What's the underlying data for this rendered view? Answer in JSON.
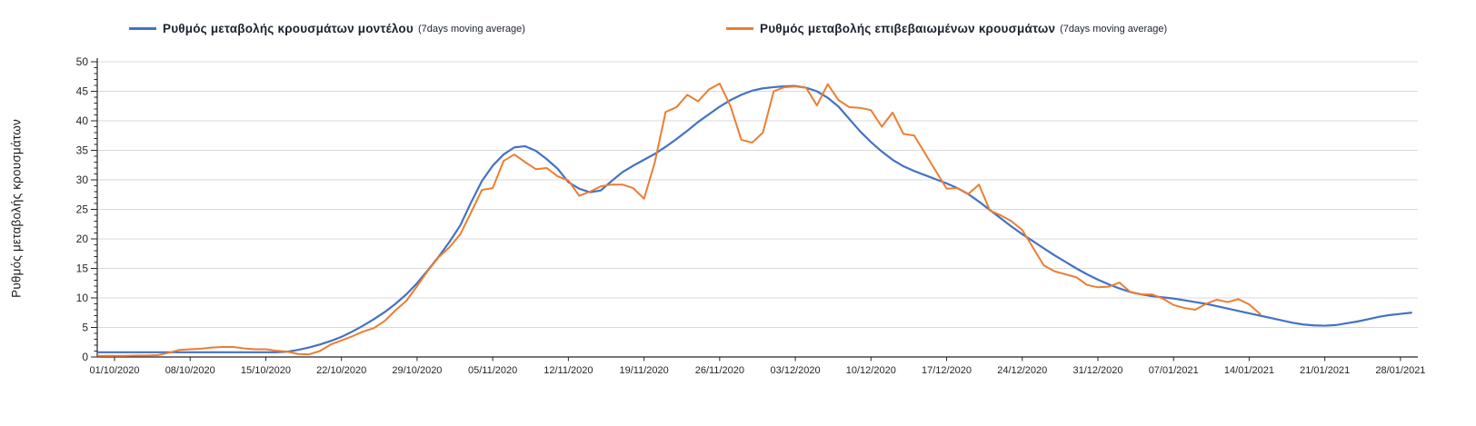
{
  "chart_data": {
    "type": "line",
    "title": "",
    "ylabel": "Ρυθμός μεταβολής κρουσμάτων",
    "xlabel": "",
    "ylim": [
      0,
      50
    ],
    "y_ticks": [
      0,
      5,
      10,
      15,
      20,
      25,
      30,
      35,
      40,
      45,
      50
    ],
    "y_minor_tick_step": 1,
    "grid": "horizontal",
    "legend_position": "top",
    "x_tick_interval_days": 7,
    "x_tick_labels": [
      "01/10/2020",
      "08/10/2020",
      "15/10/2020",
      "22/10/2020",
      "29/10/2020",
      "05/11/2020",
      "12/11/2020",
      "19/11/2020",
      "26/11/2020",
      "03/12/2020",
      "10/12/2020",
      "17/12/2020",
      "24/12/2020",
      "31/12/2020",
      "07/01/2021",
      "14/01/2021",
      "21/01/2021",
      "28/01/2021"
    ],
    "series": [
      {
        "name": "Ρυθμός μεταβολής κρουσμάτων μοντέλου",
        "suffix": "(7days moving average)",
        "color": "#4472C4",
        "stroke_width": 2.2,
        "start_date": "01/10/2020",
        "end_date": "29/01/2021",
        "step_days": 1,
        "values": [
          0.8,
          0.8,
          0.8,
          0.8,
          0.8,
          0.8,
          0.8,
          0.8,
          0.8,
          0.8,
          0.8,
          0.8,
          0.8,
          0.8,
          0.8,
          0.8,
          0.9,
          1.2,
          1.6,
          2.1,
          2.7,
          3.4,
          4.3,
          5.3,
          6.4,
          7.6,
          9.0,
          10.6,
          12.5,
          14.7,
          17.0,
          19.5,
          22.3,
          26.2,
          29.8,
          32.4,
          34.3,
          35.5,
          35.7,
          34.9,
          33.5,
          31.9,
          29.6,
          28.5,
          27.9,
          28.2,
          29.8,
          31.3,
          32.4,
          33.4,
          34.4,
          35.6,
          36.9,
          38.3,
          39.8,
          41.1,
          42.4,
          43.5,
          44.4,
          45.1,
          45.5,
          45.7,
          45.85,
          45.9,
          45.6,
          45.0,
          43.9,
          42.4,
          40.3,
          38.2,
          36.4,
          34.8,
          33.4,
          32.3,
          31.5,
          30.8,
          30.1,
          29.4,
          28.6,
          27.6,
          26.3,
          24.9,
          23.5,
          22.1,
          20.8,
          19.6,
          18.4,
          17.2,
          16.1,
          15.0,
          14.0,
          13.1,
          12.3,
          11.6,
          11.0,
          10.6,
          10.3,
          10.1,
          9.9,
          9.6,
          9.3,
          9.0,
          8.6,
          8.2,
          7.8,
          7.4,
          7.0,
          6.6,
          6.2,
          5.8,
          5.5,
          5.35,
          5.3,
          5.4,
          5.7,
          6.0,
          6.4,
          6.8,
          7.1,
          7.3,
          7.5
        ]
      },
      {
        "name": "Ρυθμός μεταβολής επιβεβαιωμένων κρουσμάτων",
        "suffix": "(7days moving average)",
        "color": "#ED7D31",
        "stroke_width": 2,
        "start_date": "01/10/2020",
        "end_date": "15/01/2021",
        "step_days": 1,
        "values": [
          0.2,
          0.2,
          0.25,
          0.25,
          0.3,
          0.7,
          1.2,
          1.3,
          1.4,
          1.6,
          1.7,
          1.7,
          1.45,
          1.3,
          1.3,
          1.05,
          0.9,
          0.5,
          0.45,
          1.0,
          2.1,
          2.8,
          3.5,
          4.3,
          4.9,
          6.1,
          7.9,
          9.5,
          12.0,
          14.6,
          16.9,
          18.6,
          20.8,
          24.5,
          28.3,
          28.6,
          33.2,
          34.3,
          33.0,
          31.8,
          32.0,
          30.6,
          29.9,
          27.3,
          28.0,
          28.9,
          29.2,
          29.2,
          28.6,
          26.8,
          33.0,
          41.5,
          42.3,
          44.4,
          43.3,
          45.3,
          46.3,
          42.5,
          36.8,
          36.3,
          38.0,
          45.0,
          45.7,
          45.8,
          45.6,
          42.6,
          46.2,
          43.5,
          42.3,
          42.2,
          41.8,
          39.0,
          41.4,
          37.8,
          37.5,
          34.5,
          31.5,
          28.5,
          28.6,
          27.6,
          29.2,
          24.8,
          24.0,
          23.0,
          21.5,
          18.5,
          15.5,
          14.5,
          14.0,
          13.5,
          12.2,
          11.8,
          11.9,
          12.6,
          11.0,
          10.6,
          10.6,
          9.9,
          8.8,
          8.3,
          8.0,
          9.0,
          9.7,
          9.3,
          9.8,
          8.9,
          7.3
        ]
      }
    ]
  }
}
